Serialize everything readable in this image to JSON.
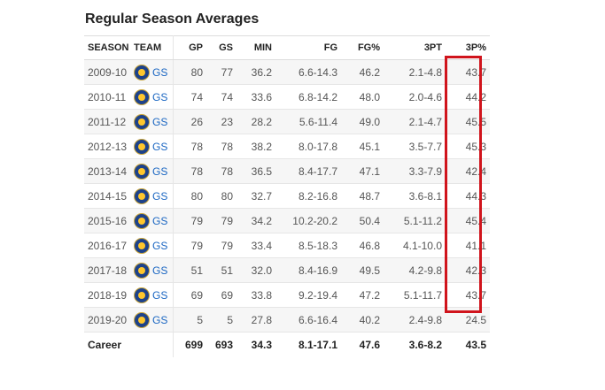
{
  "title": "Regular Season Averages",
  "columns": [
    "SEASON",
    "TEAM",
    "GP",
    "GS",
    "MIN",
    "FG",
    "FG%",
    "3PT",
    "3P%"
  ],
  "team_abbr": "GS",
  "rows": [
    {
      "season": "2009-10",
      "team": "GS",
      "gp": "80",
      "gs": "77",
      "min": "36.2",
      "fg": "6.6-14.3",
      "fgp": "46.2",
      "tpt": "2.1-4.8",
      "tpp": "43.7"
    },
    {
      "season": "2010-11",
      "team": "GS",
      "gp": "74",
      "gs": "74",
      "min": "33.6",
      "fg": "6.8-14.2",
      "fgp": "48.0",
      "tpt": "2.0-4.6",
      "tpp": "44.2"
    },
    {
      "season": "2011-12",
      "team": "GS",
      "gp": "26",
      "gs": "23",
      "min": "28.2",
      "fg": "5.6-11.4",
      "fgp": "49.0",
      "tpt": "2.1-4.7",
      "tpp": "45.5"
    },
    {
      "season": "2012-13",
      "team": "GS",
      "gp": "78",
      "gs": "78",
      "min": "38.2",
      "fg": "8.0-17.8",
      "fgp": "45.1",
      "tpt": "3.5-7.7",
      "tpp": "45.3"
    },
    {
      "season": "2013-14",
      "team": "GS",
      "gp": "78",
      "gs": "78",
      "min": "36.5",
      "fg": "8.4-17.7",
      "fgp": "47.1",
      "tpt": "3.3-7.9",
      "tpp": "42.4"
    },
    {
      "season": "2014-15",
      "team": "GS",
      "gp": "80",
      "gs": "80",
      "min": "32.7",
      "fg": "8.2-16.8",
      "fgp": "48.7",
      "tpt": "3.6-8.1",
      "tpp": "44.3"
    },
    {
      "season": "2015-16",
      "team": "GS",
      "gp": "79",
      "gs": "79",
      "min": "34.2",
      "fg": "10.2-20.2",
      "fgp": "50.4",
      "tpt": "5.1-11.2",
      "tpp": "45.4"
    },
    {
      "season": "2016-17",
      "team": "GS",
      "gp": "79",
      "gs": "79",
      "min": "33.4",
      "fg": "8.5-18.3",
      "fgp": "46.8",
      "tpt": "4.1-10.0",
      "tpp": "41.1"
    },
    {
      "season": "2017-18",
      "team": "GS",
      "gp": "51",
      "gs": "51",
      "min": "32.0",
      "fg": "8.4-16.9",
      "fgp": "49.5",
      "tpt": "4.2-9.8",
      "tpp": "42.3"
    },
    {
      "season": "2018-19",
      "team": "GS",
      "gp": "69",
      "gs": "69",
      "min": "33.8",
      "fg": "9.2-19.4",
      "fgp": "47.2",
      "tpt": "5.1-11.7",
      "tpp": "43.7"
    },
    {
      "season": "2019-20",
      "team": "GS",
      "gp": "5",
      "gs": "5",
      "min": "27.8",
      "fg": "6.6-16.4",
      "fgp": "40.2",
      "tpt": "2.4-9.8",
      "tpp": "24.5"
    }
  ],
  "career": {
    "label": "Career",
    "gp": "699",
    "gs": "693",
    "min": "34.3",
    "fg": "8.1-17.1",
    "fgp": "47.6",
    "tpt": "3.6-8.2",
    "tpp": "43.5"
  },
  "colors": {
    "highlight": "#d0141c",
    "team_link": "#1a66c2",
    "team_primary": "#1d428a",
    "team_secondary": "#ffc72c"
  },
  "icons": {
    "team_logo": "warriors-logo-icon"
  }
}
